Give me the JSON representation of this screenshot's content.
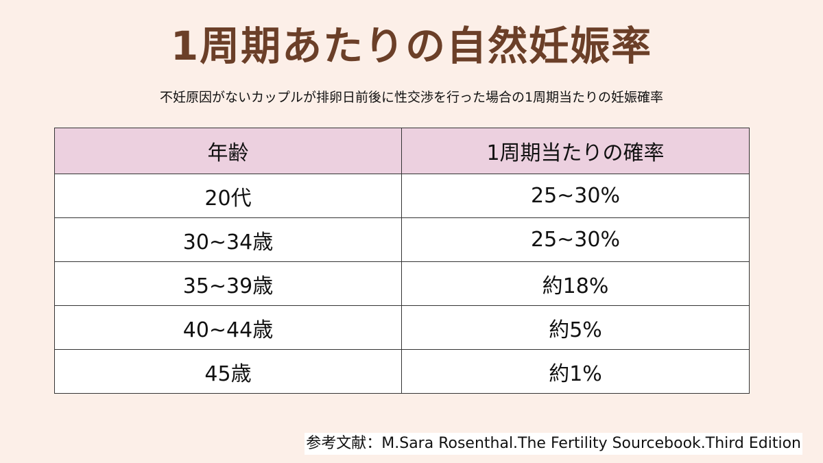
{
  "title": "1周期あたりの自然妊娠率",
  "subtitle": "不妊原因がないカップルが排卵日前後に性交渉を行った場合の1周期当たりの妊娠確率",
  "table": {
    "headers": [
      "年齢",
      "1周期当たりの確率"
    ],
    "rows": [
      [
        "20代",
        "25~30%"
      ],
      [
        "30~34歳",
        "25~30%"
      ],
      [
        "35~39歳",
        "約18%"
      ],
      [
        "40~44歳",
        "約5%"
      ],
      [
        "45歳",
        "約1%"
      ]
    ]
  },
  "reference": "参考文献：M.Sara Rosenthal.The Fertility Sourcebook.Third Edition",
  "colors": {
    "background": "#fcefe8",
    "title": "#6b3f28",
    "header_bg": "#ecd0df"
  }
}
